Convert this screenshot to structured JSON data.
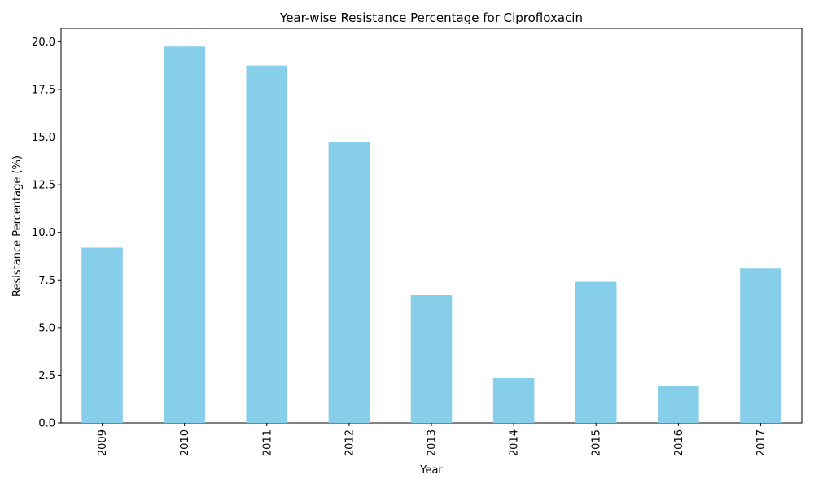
{
  "chart_data": {
    "type": "bar",
    "title": "Year-wise Resistance Percentage for Ciprofloxacin",
    "xlabel": "Year",
    "ylabel": "Resistance Percentage (%)",
    "categories": [
      "2009",
      "2010",
      "2011",
      "2012",
      "2013",
      "2014",
      "2015",
      "2016",
      "2017"
    ],
    "values": [
      9.2,
      19.75,
      18.75,
      14.75,
      6.7,
      2.35,
      7.4,
      1.95,
      8.1
    ],
    "ylim": [
      0,
      20.7
    ],
    "yticks": [
      0.0,
      2.5,
      5.0,
      7.5,
      10.0,
      12.5,
      15.0,
      17.5,
      20.0
    ],
    "ytick_labels": [
      "0.0",
      "2.5",
      "5.0",
      "7.5",
      "10.0",
      "12.5",
      "15.0",
      "17.5",
      "20.0"
    ],
    "bar_color": "#87ceeb",
    "grid": false,
    "legend": "none"
  }
}
